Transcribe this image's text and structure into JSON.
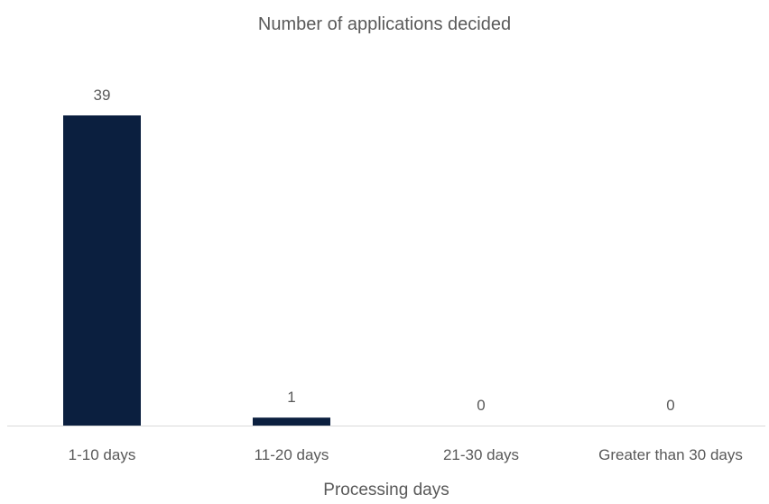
{
  "chart_data": {
    "type": "bar",
    "title": "Number of applications decided",
    "xlabel": "Processing days",
    "ylabel": "",
    "categories": [
      "1-10 days",
      "11-20 days",
      "21-30 days",
      "Greater than 30 days"
    ],
    "values": [
      39,
      1,
      0,
      0
    ],
    "ylim": [
      0,
      39
    ],
    "grid": false,
    "legend": "none",
    "colors": {
      "bar": "#0b1f3f",
      "axis": "#d9d9d9",
      "text": "#595959"
    }
  }
}
